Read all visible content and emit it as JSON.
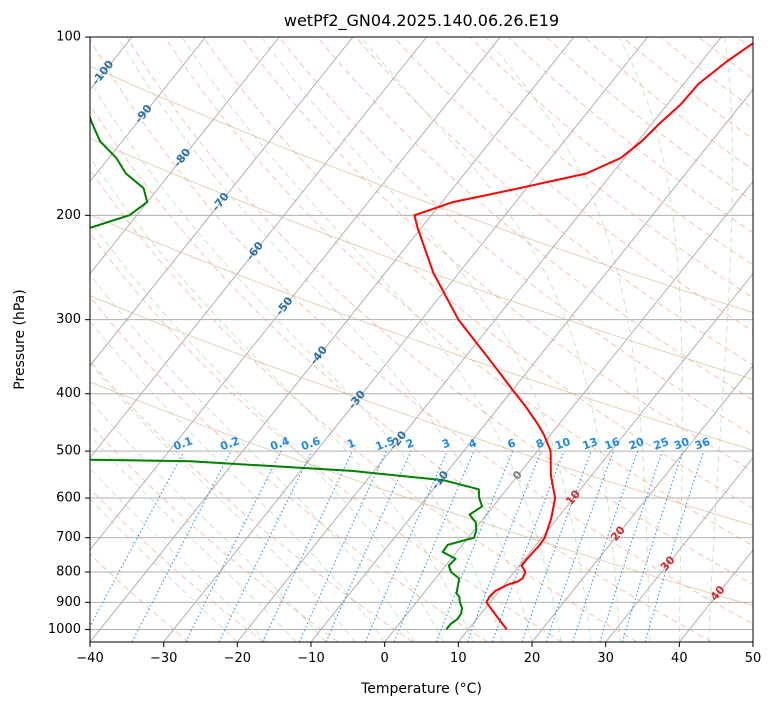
{
  "chart_data": {
    "type": "skew-t",
    "title": "wetPf2_GN04.2025.140.06.26.E19",
    "xlabel": "Temperature (°C)",
    "ylabel": "Pressure (hPa)",
    "xlim": [
      -40,
      50
    ],
    "ylim": [
      1050,
      100
    ],
    "y_scale": "log",
    "grid": true,
    "x_ticks": [
      -40,
      -30,
      -20,
      -10,
      0,
      10,
      20,
      30,
      40,
      50
    ],
    "y_ticks": [
      100,
      200,
      300,
      400,
      500,
      600,
      700,
      800,
      900,
      1000
    ],
    "isotherm_labels": [
      -100,
      -90,
      -80,
      -70,
      -60,
      -50,
      -40,
      -30,
      -20,
      -10
    ],
    "mixing_ratio_labels": [
      "0.1",
      "0.2",
      "0.4",
      "0.6",
      "1",
      "1.5",
      "2",
      "3",
      "4",
      "6",
      "8",
      "10",
      "13",
      "16",
      "20",
      "25",
      "30",
      "36"
    ],
    "moist_adiabat_labels": [
      0,
      10,
      20,
      30,
      40
    ],
    "series": [
      {
        "role": "temperature",
        "color": "#ff0000",
        "pressure": [
          1000,
          950,
          900,
          880,
          860,
          840,
          830,
          820,
          800,
          780,
          760,
          740,
          720,
          700,
          650,
          600,
          550,
          500,
          470,
          450,
          420,
          400,
          350,
          300,
          250,
          210,
          200,
          190,
          180,
          170,
          160,
          150,
          140,
          130,
          120,
          110,
          100
        ],
        "temperature": [
          15.2,
          12.4,
          9.5,
          9.3,
          9.5,
          10.5,
          11.5,
          11.8,
          11.5,
          10.3,
          10.3,
          10.4,
          10.5,
          10.4,
          9.2,
          7.5,
          4.5,
          1.8,
          -0.8,
          -2.9,
          -6.5,
          -9.2,
          -16.5,
          -25.0,
          -33.5,
          -40.5,
          -42.3,
          -38.5,
          -31.0,
          -23.5,
          -20.5,
          -19.5,
          -19.0,
          -18.2,
          -18.0,
          -16.6,
          -14.5
        ]
      },
      {
        "role": "dewpoint",
        "color": "#008000",
        "pressure": [
          1000,
          980,
          960,
          940,
          920,
          900,
          880,
          870,
          850,
          820,
          800,
          780,
          760,
          740,
          720,
          700,
          680,
          660,
          640,
          620,
          600,
          580,
          560,
          540,
          520,
          515,
          500,
          460,
          430,
          400,
          370,
          350,
          340,
          330,
          320,
          310,
          300,
          270,
          250,
          230,
          210,
          200,
          190,
          180,
          170,
          160,
          150,
          140,
          130,
          120,
          110,
          100
        ],
        "temperature": [
          7.0,
          7.0,
          7.4,
          7.3,
          6.8,
          5.9,
          5.2,
          4.5,
          4.0,
          3.2,
          1.4,
          0.4,
          0.6,
          -1.9,
          -2.0,
          0.8,
          0.3,
          -0.6,
          -2.3,
          -1.5,
          -2.8,
          -3.8,
          -9.5,
          -23.0,
          -46.0,
          -70.0,
          -82.0,
          -92.0,
          -98.0,
          -104.0,
          -110.0,
          -113.0,
          -111.0,
          -110.0,
          -111.0,
          -113.0,
          -114.0,
          -110.0,
          -102.0,
          -93.0,
          -85.0,
          -81.0,
          -80.0,
          -82.0,
          -86.0,
          -89.0,
          -93.0,
          -96.0,
          -99.0,
          -102.0,
          -104.0,
          -106.0
        ]
      }
    ]
  }
}
